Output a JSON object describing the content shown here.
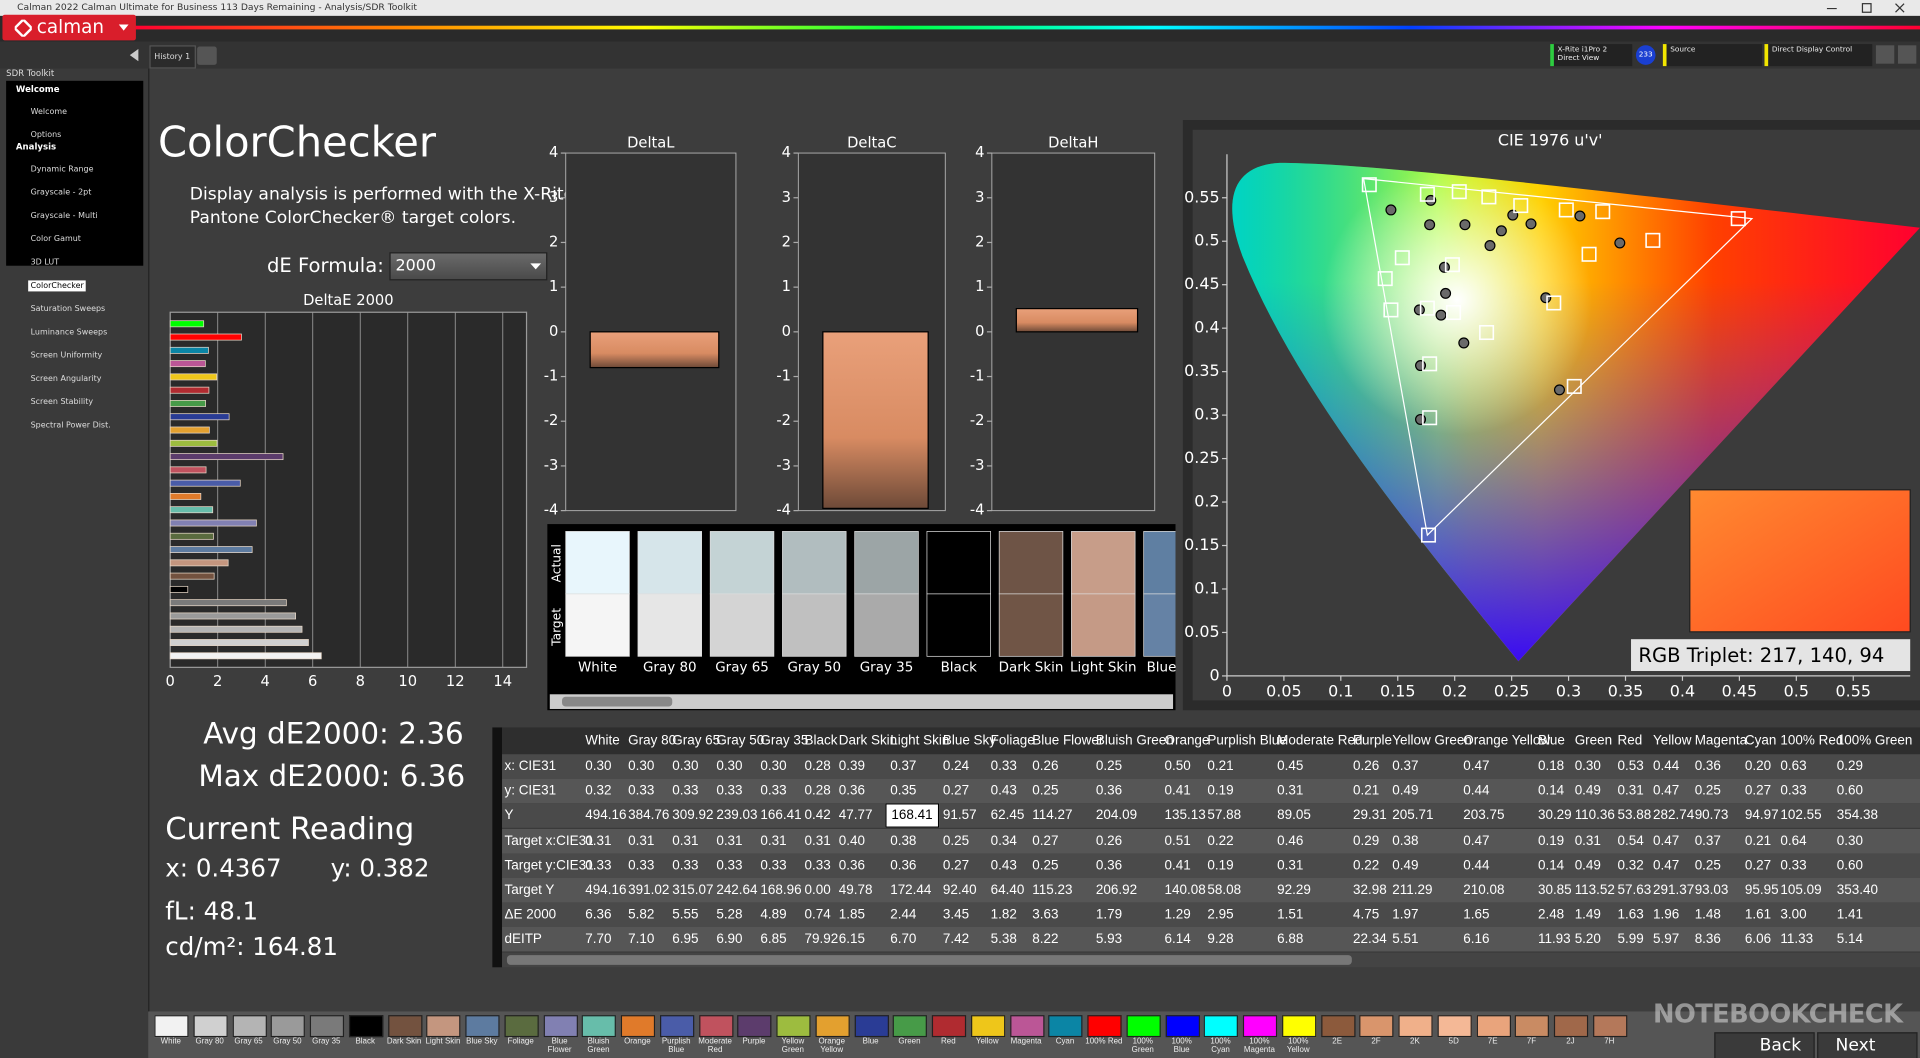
{
  "title_bar": {
    "text": "Calman 2022 Calman Ultimate for Business 113 Days Remaining - Analysis/SDR Toolkit"
  },
  "logo": "calman",
  "tabs": [
    "History 1"
  ],
  "toolbar": {
    "meter": [
      "X-Rite i1Pro 2",
      "Direct View"
    ],
    "meter_badge": "233",
    "source": "Source",
    "display": "Direct Display Control"
  },
  "sidebar": {
    "title": "SDR Toolkit",
    "groups": [
      {
        "label": "Welcome",
        "items": [
          "Welcome",
          "Options"
        ]
      },
      {
        "label": "Analysis",
        "items": [
          "Dynamic Range",
          "Grayscale - 2pt",
          "Grayscale - Multi",
          "Color Gamut",
          "3D LUT",
          "ColorChecker",
          "Saturation Sweeps",
          "Luminance Sweeps",
          "Screen Uniformity",
          "Screen Angularity",
          "Screen Stability",
          "Spectral Power Dist."
        ]
      }
    ],
    "selected": {
      "group": 1,
      "item": 5
    }
  },
  "heading": "ColorChecker",
  "description": [
    "Display analysis is performed with the X-Rite/",
    "Pantone ColorChecker® target colors."
  ],
  "formula": {
    "label": "dE Formula:",
    "value": "2000"
  },
  "deltae_chart": {
    "title": "DeltaE 2000",
    "xlim": [
      0,
      15
    ],
    "xticks": [
      0,
      2,
      4,
      6,
      8,
      10,
      12,
      14
    ],
    "values": [
      6.36,
      5.82,
      5.55,
      5.28,
      4.89,
      0.74,
      1.85,
      2.44,
      3.45,
      1.82,
      3.63,
      1.79,
      1.29,
      2.95,
      1.51,
      4.75,
      1.97,
      1.65,
      2.48,
      1.49,
      1.63,
      1.96,
      1.48,
      1.61,
      3.0,
      1.41
    ]
  },
  "delta_charts": [
    {
      "title": "DeltaL",
      "value": -0.8,
      "ylim": [
        -4,
        4
      ],
      "yticks": [
        -4,
        -3,
        -2,
        -1,
        0,
        1,
        2,
        3,
        4
      ]
    },
    {
      "title": "DeltaC",
      "value": -3.95,
      "ylim": [
        -4,
        4
      ],
      "yticks": [
        -4,
        -3,
        -2,
        -1,
        0,
        1,
        2,
        3,
        4
      ]
    },
    {
      "title": "DeltaH",
      "value": 0.52,
      "ylim": [
        -4,
        4
      ],
      "yticks": [
        -4,
        -3,
        -2,
        -1,
        0,
        1,
        2,
        3,
        4
      ]
    }
  ],
  "swatches": {
    "row_labels": [
      "Actual",
      "Target"
    ],
    "items": [
      {
        "name": "White",
        "actual": "#e8f6fc",
        "target": "#f5f5f5"
      },
      {
        "name": "Gray 80",
        "actual": "#d6e5ea",
        "target": "#e6e6e6"
      },
      {
        "name": "Gray 65",
        "actual": "#c4d3d5",
        "target": "#d4d4d4"
      },
      {
        "name": "Gray 50",
        "actual": "#b1bdbf",
        "target": "#c0c0c0"
      },
      {
        "name": "Gray 35",
        "actual": "#9ca5a6",
        "target": "#aaaaaa"
      },
      {
        "name": "Black",
        "actual": "#000000",
        "target": "#000000"
      },
      {
        "name": "Dark Skin",
        "actual": "#6e5446",
        "target": "#705546"
      },
      {
        "name": "Light Skin",
        "actual": "#c79d89",
        "target": "#c59a86"
      },
      {
        "name": "Blue Sky",
        "actual": "#5f7fa2",
        "target": "#6582a5"
      }
    ]
  },
  "cie": {
    "title": "CIE 1976 u'v'",
    "xlim": [
      0,
      0.6
    ],
    "ylim": [
      0,
      0.6
    ],
    "xticks": [
      0,
      0.05,
      0.1,
      0.15,
      0.2,
      0.25,
      0.3,
      0.35,
      0.4,
      0.45,
      0.5,
      0.55
    ],
    "yticks": [
      0,
      0.05,
      0.1,
      0.15,
      0.2,
      0.25,
      0.3,
      0.35,
      0.4,
      0.45,
      0.5,
      0.55
    ],
    "gamut": {
      "u": [
        0.461,
        0.12,
        0.176
      ],
      "v": [
        0.526,
        0.572,
        0.162
      ]
    },
    "targets": {
      "u": [
        0.125,
        0.176,
        0.204,
        0.23,
        0.258,
        0.298,
        0.33,
        0.374,
        0.449,
        0.318,
        0.287,
        0.228,
        0.305,
        0.178,
        0.178,
        0.177,
        0.144,
        0.139,
        0.154,
        0.198,
        0.176,
        0.199
      ],
      "v": [
        0.565,
        0.554,
        0.557,
        0.551,
        0.541,
        0.536,
        0.534,
        0.501,
        0.526,
        0.485,
        0.429,
        0.395,
        0.333,
        0.359,
        0.297,
        0.162,
        0.421,
        0.457,
        0.481,
        0.473,
        0.423,
        0.418
      ]
    },
    "measured": {
      "u": [
        0.144,
        0.179,
        0.178,
        0.209,
        0.191,
        0.192,
        0.169,
        0.188,
        0.208,
        0.17,
        0.17,
        0.292,
        0.28,
        0.251,
        0.231,
        0.241,
        0.267,
        0.31,
        0.345
      ],
      "v": [
        0.536,
        0.547,
        0.519,
        0.519,
        0.47,
        0.44,
        0.421,
        0.415,
        0.383,
        0.357,
        0.295,
        0.329,
        0.435,
        0.53,
        0.495,
        0.512,
        0.52,
        0.529,
        0.498
      ]
    },
    "inset_label": "RGB Triplet: 217, 140, 94"
  },
  "summary": {
    "avg": "Avg dE2000: 2.36",
    "max": "Max dE2000: 6.36"
  },
  "current_reading": {
    "title": "Current Reading",
    "x": "x: 0.4367",
    "y": "y: 0.382",
    "fl": "fL: 48.1",
    "luminance": "cd/m²: 164.81"
  },
  "table": {
    "columns": [
      "White",
      "Gray 80",
      "Gray 65",
      "Gray 50",
      "Gray 35",
      "Black",
      "Dark Skin",
      "Light Skin",
      "Blue Sky",
      "Foliage",
      "Blue Flower",
      "Bluish Green",
      "Orange",
      "Purplish Blue",
      "Moderate Red",
      "Purple",
      "Yellow Green",
      "Orange Yellow",
      "Blue",
      "Green",
      "Red",
      "Yellow",
      "Magenta",
      "Cyan",
      "100% Red",
      "100% Green"
    ],
    "rows": [
      {
        "label": "x: CIE31",
        "cells": [
          "0.30",
          "0.30",
          "0.30",
          "0.30",
          "0.30",
          "0.28",
          "0.39",
          "0.37",
          "0.24",
          "0.33",
          "0.26",
          "0.25",
          "0.50",
          "0.21",
          "0.45",
          "0.26",
          "0.37",
          "0.47",
          "0.18",
          "0.30",
          "0.53",
          "0.44",
          "0.36",
          "0.20",
          "0.63",
          "0.29"
        ]
      },
      {
        "label": "y: CIE31",
        "cells": [
          "0.32",
          "0.33",
          "0.33",
          "0.33",
          "0.33",
          "0.28",
          "0.36",
          "0.35",
          "0.27",
          "0.43",
          "0.25",
          "0.36",
          "0.41",
          "0.19",
          "0.31",
          "0.21",
          "0.49",
          "0.44",
          "0.14",
          "0.49",
          "0.31",
          "0.47",
          "0.25",
          "0.27",
          "0.33",
          "0.60"
        ]
      },
      {
        "label": "Y",
        "cells": [
          "494.16",
          "384.76",
          "309.92",
          "239.03",
          "166.41",
          "0.42",
          "47.77",
          "168.41",
          "91.57",
          "62.45",
          "114.27",
          "204.09",
          "135.13",
          "57.88",
          "89.05",
          "29.31",
          "205.71",
          "203.75",
          "30.29",
          "110.36",
          "53.88",
          "282.74",
          "90.73",
          "94.97",
          "102.55",
          "354.38"
        ]
      },
      {
        "label": "Target x:CIE31",
        "cells": [
          "0.31",
          "0.31",
          "0.31",
          "0.31",
          "0.31",
          "0.31",
          "0.40",
          "0.38",
          "0.25",
          "0.34",
          "0.27",
          "0.26",
          "0.51",
          "0.22",
          "0.46",
          "0.29",
          "0.38",
          "0.47",
          "0.19",
          "0.31",
          "0.54",
          "0.47",
          "0.37",
          "0.21",
          "0.64",
          "0.30"
        ]
      },
      {
        "label": "Target y:CIE31",
        "cells": [
          "0.33",
          "0.33",
          "0.33",
          "0.33",
          "0.33",
          "0.33",
          "0.36",
          "0.36",
          "0.27",
          "0.43",
          "0.25",
          "0.36",
          "0.41",
          "0.19",
          "0.31",
          "0.22",
          "0.49",
          "0.44",
          "0.14",
          "0.49",
          "0.32",
          "0.47",
          "0.25",
          "0.27",
          "0.33",
          "0.60"
        ]
      },
      {
        "label": "Target Y",
        "cells": [
          "494.16",
          "391.02",
          "315.07",
          "242.64",
          "168.96",
          "0.00",
          "49.78",
          "172.44",
          "92.40",
          "64.40",
          "115.23",
          "206.92",
          "140.08",
          "58.08",
          "92.29",
          "32.98",
          "211.29",
          "210.08",
          "30.85",
          "113.52",
          "57.63",
          "291.37",
          "93.03",
          "95.95",
          "105.09",
          "353.40"
        ]
      },
      {
        "label": "ΔE 2000",
        "cells": [
          "6.36",
          "5.82",
          "5.55",
          "5.28",
          "4.89",
          "0.74",
          "1.85",
          "2.44",
          "3.45",
          "1.82",
          "3.63",
          "1.79",
          "1.29",
          "2.95",
          "1.51",
          "4.75",
          "1.97",
          "1.65",
          "2.48",
          "1.49",
          "1.63",
          "1.96",
          "1.48",
          "1.61",
          "3.00",
          "1.41"
        ]
      },
      {
        "label": "dEITP",
        "cells": [
          "7.70",
          "7.10",
          "6.95",
          "6.90",
          "6.85",
          "79.92",
          "6.15",
          "6.70",
          "7.42",
          "5.38",
          "8.22",
          "5.93",
          "6.14",
          "9.28",
          "6.88",
          "22.34",
          "5.51",
          "6.16",
          "11.93",
          "5.20",
          "5.99",
          "5.97",
          "8.36",
          "6.06",
          "11.33",
          "5.14"
        ]
      }
    ],
    "highlight": {
      "row": 2,
      "column": 7
    }
  },
  "bottom_bar": {
    "swatches": [
      {
        "name": "White",
        "color": "#f2f2f2"
      },
      {
        "name": "Gray 80",
        "color": "#d0d0d0"
      },
      {
        "name": "Gray 65",
        "color": "#b4b4b4"
      },
      {
        "name": "Gray 50",
        "color": "#9a9a9a"
      },
      {
        "name": "Gray 35",
        "color": "#7a7a7a"
      },
      {
        "name": "Black",
        "color": "#000000"
      },
      {
        "name": "Dark Skin",
        "color": "#73523f"
      },
      {
        "name": "Light Skin",
        "color": "#c4967f"
      },
      {
        "name": "Blue Sky",
        "color": "#5d7ba0"
      },
      {
        "name": "Foliage",
        "color": "#5a6b3f"
      },
      {
        "name": "Blue Flower",
        "color": "#8180b2"
      },
      {
        "name": "Bluish Green",
        "color": "#67bdaa"
      },
      {
        "name": "Orange",
        "color": "#e07a2a"
      },
      {
        "name": "Purplish Blue",
        "color": "#4a5ca8"
      },
      {
        "name": "Moderate Red",
        "color": "#c0525e"
      },
      {
        "name": "Purple",
        "color": "#5c3c6c"
      },
      {
        "name": "Yellow Green",
        "color": "#9dbc3f"
      },
      {
        "name": "Orange Yellow",
        "color": "#e3a02f"
      },
      {
        "name": "Blue",
        "color": "#2a3c95"
      },
      {
        "name": "Green",
        "color": "#479b48"
      },
      {
        "name": "Red",
        "color": "#b02b30"
      },
      {
        "name": "Yellow",
        "color": "#eec61a"
      },
      {
        "name": "Magenta",
        "color": "#bb5696"
      },
      {
        "name": "Cyan",
        "color": "#0b85a5"
      },
      {
        "name": "100% Red",
        "color": "#ff0000"
      },
      {
        "name": "100% Green",
        "color": "#00ff00"
      },
      {
        "name": "100% Blue",
        "color": "#0000ff"
      },
      {
        "name": "100% Cyan",
        "color": "#00ffff"
      },
      {
        "name": "100% Magenta",
        "color": "#ff00ff"
      },
      {
        "name": "100% Yellow",
        "color": "#ffff00"
      },
      {
        "name": "2E",
        "color": "#8c5a3c"
      },
      {
        "name": "2F",
        "color": "#d9956c"
      },
      {
        "name": "2K",
        "color": "#f0b08a"
      },
      {
        "name": "5D",
        "color": "#f4b896"
      },
      {
        "name": "7E",
        "color": "#e9a47c"
      },
      {
        "name": "7F",
        "color": "#c98b63"
      },
      {
        "name": "2J",
        "color": "#a0684a"
      },
      {
        "name": "7H",
        "color": "#b4785a"
      }
    ],
    "back": "Back",
    "next": "Next",
    "watermark": "NOTEBOOKCHECK"
  }
}
